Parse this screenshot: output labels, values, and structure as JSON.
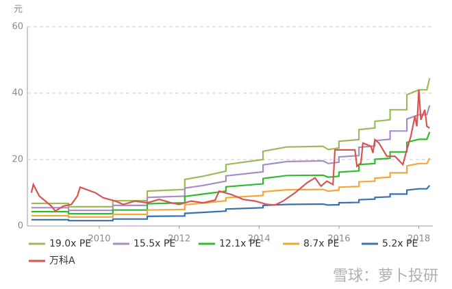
{
  "chart_data": {
    "type": "line",
    "title": "元",
    "watermark": "雪球：萝卜投研",
    "xlim": [
      2008.2,
      2018.35
    ],
    "xticks": [
      2010,
      2012,
      2014,
      2016,
      2018
    ],
    "ylim": [
      0,
      60
    ],
    "yticks": [
      0,
      20,
      40,
      60
    ],
    "grid": true,
    "x": [
      2008.3,
      2009.23,
      2009.23,
      2010.34,
      2010.34,
      2011.2,
      2011.2,
      2012.14,
      2012.14,
      2012.6,
      2013.17,
      2013.17,
      2014.1,
      2014.1,
      2014.7,
      2015.6,
      2015.73,
      2016.0,
      2016.0,
      2016.5,
      2016.5,
      2016.9,
      2016.9,
      2017.28,
      2017.28,
      2017.7,
      2017.7,
      2018.0,
      2018.2,
      2018.27
    ],
    "series": [
      {
        "name": "19.0x PE",
        "color": "#9bbb59",
        "values": [
          6.8,
          6.8,
          5.8,
          5.8,
          7.6,
          7.6,
          10.5,
          11,
          14,
          15,
          16.5,
          18.5,
          20,
          22.5,
          23.8,
          24,
          23,
          23.5,
          25.5,
          26,
          29,
          29.5,
          31.5,
          32,
          35,
          35,
          39.5,
          41,
          41,
          44.5
        ]
      },
      {
        "name": "15.5x PE",
        "color": "#a98bc5",
        "values": [
          5.5,
          5.5,
          4.7,
          4.7,
          6.2,
          6.2,
          8.6,
          9.0,
          11.4,
          12.2,
          13.5,
          15.1,
          16.3,
          18.4,
          19.4,
          19.6,
          18.8,
          19.2,
          20.8,
          21.2,
          23.7,
          24.1,
          25.7,
          26.1,
          28.6,
          28.6,
          32.2,
          33.5,
          33.5,
          36.3
        ]
      },
      {
        "name": "12.1x PE",
        "color": "#2ebb2e",
        "values": [
          4.3,
          4.3,
          3.7,
          3.7,
          4.8,
          4.8,
          6.7,
          7.0,
          8.9,
          9.6,
          10.5,
          11.8,
          12.7,
          14.3,
          15.2,
          15.3,
          14.7,
          15.0,
          16.2,
          16.6,
          18.5,
          18.8,
          20.1,
          20.4,
          22.3,
          22.3,
          25.2,
          26.1,
          26.1,
          28.3
        ]
      },
      {
        "name": "8.7x PE",
        "color": "#f5a637",
        "values": [
          3.1,
          3.1,
          2.7,
          2.7,
          3.5,
          3.5,
          4.8,
          5.0,
          6.4,
          6.9,
          7.6,
          8.5,
          9.2,
          10.3,
          10.9,
          11.0,
          10.5,
          10.8,
          11.7,
          11.9,
          13.3,
          13.5,
          14.4,
          14.7,
          16.0,
          16.0,
          18.1,
          18.8,
          18.8,
          20.4
        ]
      },
      {
        "name": "5.2x PE",
        "color": "#3a6fb0",
        "values": [
          1.9,
          1.9,
          1.6,
          1.6,
          2.1,
          2.1,
          2.9,
          3.0,
          3.8,
          4.1,
          4.5,
          5.1,
          5.5,
          6.2,
          6.5,
          6.6,
          6.3,
          6.4,
          7.0,
          7.1,
          7.9,
          8.1,
          8.6,
          8.8,
          9.6,
          9.6,
          10.8,
          11.2,
          11.2,
          12.2
        ]
      },
      {
        "name": "万科A",
        "color": "#d9534f",
        "x": [
          2008.3,
          2008.35,
          2008.5,
          2008.8,
          2008.9,
          2009.1,
          2009.3,
          2009.45,
          2009.52,
          2009.9,
          2010.1,
          2010.4,
          2010.6,
          2010.9,
          2011.2,
          2011.5,
          2011.8,
          2012.0,
          2012.3,
          2012.6,
          2012.9,
          2013.0,
          2013.3,
          2013.6,
          2013.9,
          2014.2,
          2014.4,
          2014.6,
          2014.9,
          2015.2,
          2015.4,
          2015.55,
          2015.7,
          2015.85,
          2015.9,
          2016.4,
          2016.45,
          2016.55,
          2016.6,
          2016.8,
          2016.85,
          2016.9,
          2017.0,
          2017.2,
          2017.4,
          2017.6,
          2017.7,
          2017.8,
          2017.9,
          2017.95,
          2018.0,
          2018.05,
          2018.15,
          2018.2,
          2018.27
        ],
        "values": [
          10,
          12.5,
          9,
          6,
          4.5,
          6,
          6.5,
          9,
          11.7,
          10,
          8.5,
          7.5,
          6.5,
          7.5,
          7,
          8,
          7,
          6.5,
          7.5,
          7,
          7.8,
          10.5,
          9.5,
          8,
          7.5,
          6.5,
          6.3,
          7.5,
          10,
          13,
          14.5,
          12,
          13.5,
          12.5,
          22.9,
          22.9,
          18,
          19,
          25,
          24,
          22,
          26,
          25,
          21,
          21,
          18.5,
          23,
          27,
          33,
          30,
          41,
          32,
          35,
          30,
          29.5
        ]
      }
    ]
  }
}
